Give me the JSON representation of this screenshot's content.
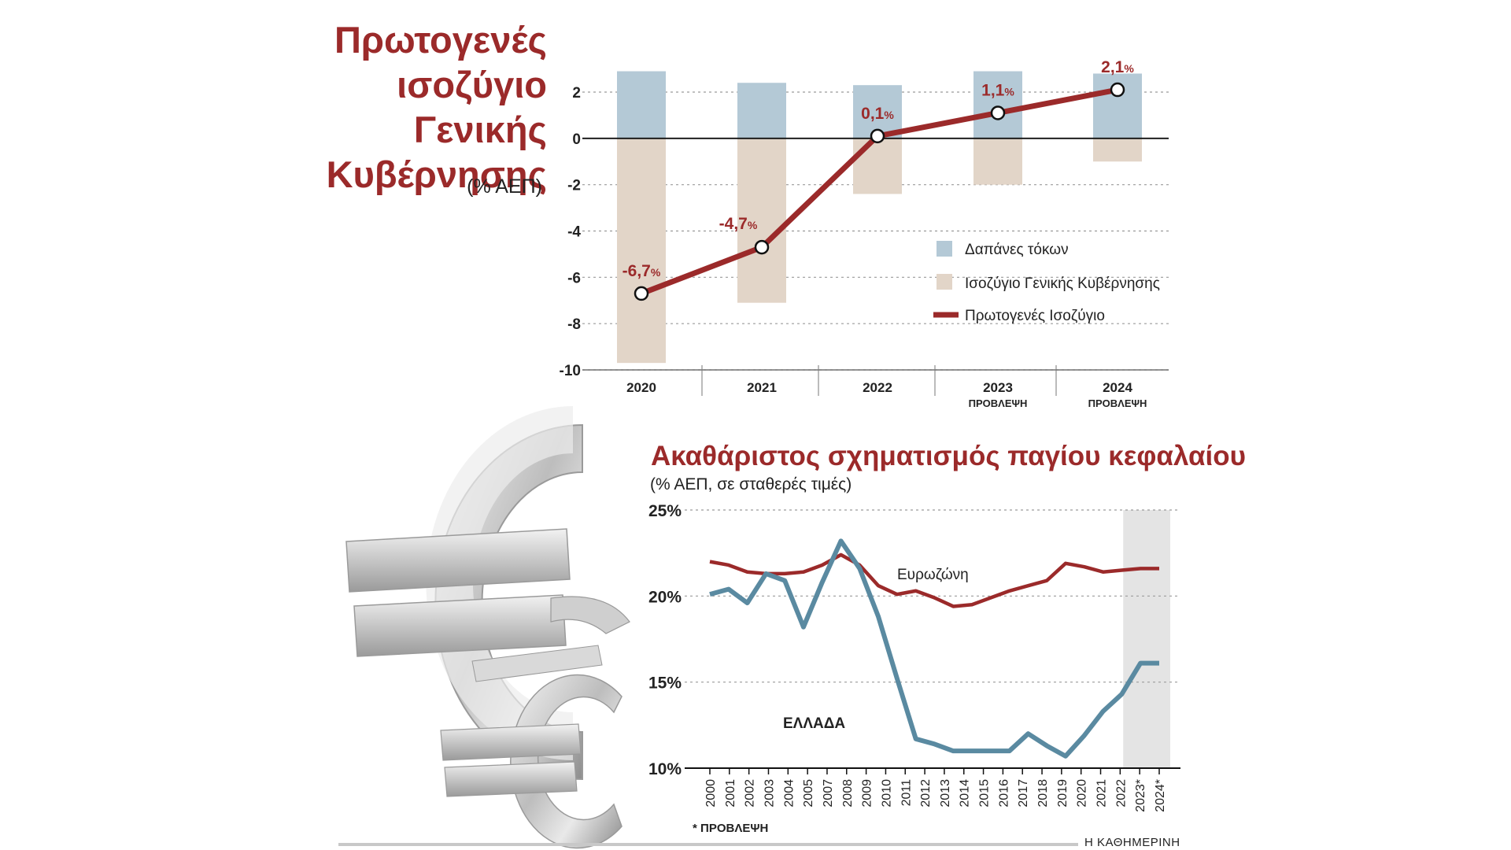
{
  "charts": {
    "primary_balance": {
      "title_lines": [
        "Πρωτογενές",
        "ισοζύγιο",
        "Γενικής",
        "Κυβέρνησης"
      ],
      "unit": "(% ΑΕΠ)",
      "legend": [
        "Δαπάνες τόκων",
        "Ισοζύγιο Γενικής Κυβέρνησης",
        "Πρωτογενές Ισοζύγιο"
      ]
    },
    "gfcf": {
      "title": "Ακαθάριστος σχηματισμός παγίου κεφαλαίου",
      "subtitle": "(% ΑΕΠ, σε σταθερές τιμές)",
      "label_eurozone": "Ευρωζώνη",
      "label_greece": "ΕΛΛΑΔΑ",
      "footnote": "* ΠΡΟΒΛΕΨΗ"
    }
  },
  "source": "Η ΚΑΘΗΜΕΡΙΝΗ",
  "colors": {
    "dark_red": "#9b2a2a",
    "interest_blue": "#b4c9d6",
    "balance_beige": "#e2d5c8",
    "greece_line": "#5a8aa1",
    "eurozone_line": "#9b2a2a",
    "forecast_shade": "#e4e4e4"
  },
  "chart_data": [
    {
      "type": "bar",
      "title": "Πρωτογενές ισοζύγιο Γενικής Κυβέρνησης",
      "ylabel": "(% ΑΕΠ)",
      "categories": [
        "2020",
        "2021",
        "2022",
        "2023",
        "2024"
      ],
      "category_notes": [
        "",
        "",
        "",
        "ΠΡΟΒΛΕΨΗ",
        "ΠΡΟΒΛΕΨΗ"
      ],
      "ylim": [
        -10,
        2
      ],
      "yticks": [
        2,
        0,
        -2,
        -4,
        -6,
        -8,
        -10
      ],
      "grid": true,
      "legend_position": "right",
      "series": [
        {
          "name": "Δαπάνες τόκων",
          "kind": "bar",
          "values": [
            2.9,
            2.4,
            2.3,
            2.9,
            2.8
          ]
        },
        {
          "name": "Ισοζύγιο Γενικής Κυβέρνησης",
          "kind": "bar",
          "values": [
            -9.7,
            -7.1,
            -2.4,
            -2.0,
            -1.0
          ]
        },
        {
          "name": "Πρωτογενές Ισοζύγιο",
          "kind": "line",
          "values": [
            -6.7,
            -4.7,
            0.1,
            1.1,
            2.1
          ],
          "labels": [
            "-6,7",
            "-4,7",
            "0,1",
            "1,1",
            "2,1"
          ]
        }
      ]
    },
    {
      "type": "line",
      "title": "Ακαθάριστος σχηματισμός παγίου κεφαλαίου",
      "subtitle": "(% ΑΕΠ, σε σταθερές τιμές)",
      "x": [
        "2000",
        "2001",
        "2002",
        "2003",
        "2004",
        "2005",
        "2006",
        "2007",
        "2008",
        "2009",
        "2010",
        "2011",
        "2012",
        "2013",
        "2014",
        "2015",
        "2016",
        "2017",
        "2018",
        "2019",
        "2020",
        "2021",
        "2022",
        "2023*",
        "2024*"
      ],
      "x_ticks": [
        "2000",
        "2001",
        "2002",
        "2003",
        "2004",
        "2005",
        "2007",
        "2008",
        "2009",
        "2010",
        "2011",
        "2012",
        "2013",
        "2014",
        "2015",
        "2016",
        "2017",
        "2018",
        "2019",
        "2020",
        "2021",
        "2022",
        "2023*",
        "2024*"
      ],
      "ylim": [
        10,
        25
      ],
      "yticks": [
        "25%",
        "20%",
        "15%",
        "10%"
      ],
      "ytick_values": [
        25,
        20,
        15,
        10
      ],
      "grid": true,
      "forecast_from": "2023*",
      "series": [
        {
          "name": "Ευρωζώνη",
          "values": [
            22.0,
            21.8,
            21.4,
            21.3,
            21.3,
            21.4,
            21.8,
            22.4,
            21.8,
            20.6,
            20.1,
            20.3,
            19.9,
            19.4,
            19.5,
            19.9,
            20.3,
            20.6,
            20.9,
            21.9,
            21.7,
            21.4,
            21.5,
            21.6,
            21.6
          ]
        },
        {
          "name": "ΕΛΛΑΔΑ",
          "values": [
            20.1,
            20.4,
            19.6,
            21.3,
            20.9,
            18.2,
            20.8,
            23.2,
            21.6,
            18.8,
            15.2,
            11.7,
            11.4,
            11.0,
            11.0,
            11.0,
            11.0,
            12.0,
            11.3,
            10.7,
            11.9,
            13.3,
            14.3,
            16.1,
            16.1
          ]
        }
      ]
    }
  ]
}
